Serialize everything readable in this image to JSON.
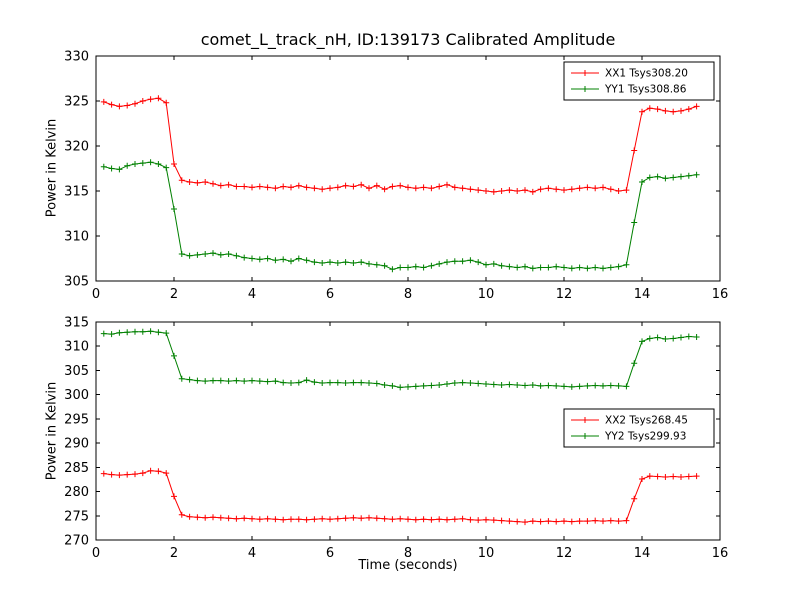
{
  "figure": {
    "title": "comet_L_track_nH, ID:139173 Calibrated Amplitude",
    "background": "#ffffff",
    "frame_color": "#000000"
  },
  "chart_data": [
    {
      "type": "line",
      "title": "",
      "xlabel": "",
      "ylabel": "Power in Kelvin",
      "xlim": [
        0,
        16
      ],
      "ylim": [
        305,
        330
      ],
      "xticks": [
        0,
        2,
        4,
        6,
        8,
        10,
        12,
        14,
        16
      ],
      "yticks": [
        305,
        310,
        315,
        320,
        325,
        330
      ],
      "grid": false,
      "legend_pos": "upper-right",
      "marker": "+",
      "x": [
        0.2,
        0.4,
        0.6,
        0.8,
        1.0,
        1.2,
        1.4,
        1.6,
        1.8,
        2.0,
        2.2,
        2.4,
        2.6,
        2.8,
        3.0,
        3.2,
        3.4,
        3.6,
        3.8,
        4.0,
        4.2,
        4.4,
        4.6,
        4.8,
        5.0,
        5.2,
        5.4,
        5.6,
        5.8,
        6.0,
        6.2,
        6.4,
        6.6,
        6.8,
        7.0,
        7.2,
        7.4,
        7.6,
        7.8,
        8.0,
        8.2,
        8.4,
        8.6,
        8.8,
        9.0,
        9.2,
        9.4,
        9.6,
        9.8,
        10.0,
        10.2,
        10.4,
        10.6,
        10.8,
        11.0,
        11.2,
        11.4,
        11.6,
        11.8,
        12.0,
        12.2,
        12.4,
        12.6,
        12.8,
        13.0,
        13.2,
        13.4,
        13.6,
        13.8,
        14.0,
        14.2,
        14.4,
        14.6,
        14.8,
        15.0,
        15.2,
        15.4
      ],
      "series": [
        {
          "name": "XX1 Tsys308.20",
          "color": "#ff0000",
          "values": [
            324.9,
            324.6,
            324.4,
            324.5,
            324.7,
            325.0,
            325.2,
            325.3,
            324.8,
            318.0,
            316.2,
            316.0,
            315.9,
            316.0,
            315.8,
            315.6,
            315.7,
            315.5,
            315.5,
            315.4,
            315.5,
            315.4,
            315.3,
            315.5,
            315.4,
            315.6,
            315.4,
            315.3,
            315.2,
            315.3,
            315.4,
            315.6,
            315.5,
            315.7,
            315.3,
            315.6,
            315.2,
            315.5,
            315.6,
            315.4,
            315.3,
            315.4,
            315.3,
            315.5,
            315.7,
            315.4,
            315.3,
            315.2,
            315.1,
            315.0,
            314.9,
            315.0,
            315.1,
            315.0,
            315.1,
            314.9,
            315.2,
            315.3,
            315.2,
            315.1,
            315.2,
            315.3,
            315.4,
            315.3,
            315.4,
            315.2,
            315.0,
            315.1,
            319.5,
            323.8,
            324.2,
            324.1,
            323.9,
            323.8,
            323.9,
            324.1,
            324.4
          ]
        },
        {
          "name": "YY1 Tsys308.86",
          "color": "#008000",
          "values": [
            317.7,
            317.5,
            317.4,
            317.8,
            318.0,
            318.1,
            318.2,
            318.0,
            317.6,
            313.0,
            308.0,
            307.8,
            307.9,
            308.0,
            308.1,
            307.9,
            308.0,
            307.8,
            307.6,
            307.5,
            307.4,
            307.5,
            307.3,
            307.4,
            307.2,
            307.5,
            307.3,
            307.1,
            307.0,
            307.1,
            307.0,
            307.1,
            307.0,
            307.1,
            306.9,
            306.8,
            306.7,
            306.3,
            306.5,
            306.5,
            306.6,
            306.5,
            306.7,
            306.9,
            307.1,
            307.2,
            307.2,
            307.3,
            307.1,
            306.8,
            306.9,
            306.7,
            306.6,
            306.5,
            306.6,
            306.4,
            306.5,
            306.5,
            306.6,
            306.5,
            306.4,
            306.5,
            306.4,
            306.5,
            306.4,
            306.5,
            306.6,
            306.8,
            311.5,
            316.0,
            316.5,
            316.6,
            316.4,
            316.5,
            316.6,
            316.7,
            316.8
          ]
        }
      ]
    },
    {
      "type": "line",
      "title": "",
      "xlabel": "Time (seconds)",
      "ylabel": "Power in Kelvin",
      "xlim": [
        0,
        16
      ],
      "ylim": [
        270,
        315
      ],
      "xticks": [
        0,
        2,
        4,
        6,
        8,
        10,
        12,
        14,
        16
      ],
      "yticks": [
        270,
        275,
        280,
        285,
        290,
        295,
        300,
        305,
        310,
        315
      ],
      "grid": false,
      "legend_pos": "middle-right",
      "marker": "+",
      "x": [
        0.2,
        0.4,
        0.6,
        0.8,
        1.0,
        1.2,
        1.4,
        1.6,
        1.8,
        2.0,
        2.2,
        2.4,
        2.6,
        2.8,
        3.0,
        3.2,
        3.4,
        3.6,
        3.8,
        4.0,
        4.2,
        4.4,
        4.6,
        4.8,
        5.0,
        5.2,
        5.4,
        5.6,
        5.8,
        6.0,
        6.2,
        6.4,
        6.6,
        6.8,
        7.0,
        7.2,
        7.4,
        7.6,
        7.8,
        8.0,
        8.2,
        8.4,
        8.6,
        8.8,
        9.0,
        9.2,
        9.4,
        9.6,
        9.8,
        10.0,
        10.2,
        10.4,
        10.6,
        10.8,
        11.0,
        11.2,
        11.4,
        11.6,
        11.8,
        12.0,
        12.2,
        12.4,
        12.6,
        12.8,
        13.0,
        13.2,
        13.4,
        13.6,
        13.8,
        14.0,
        14.2,
        14.4,
        14.6,
        14.8,
        15.0,
        15.2,
        15.4
      ],
      "series": [
        {
          "name": "XX2 Tsys268.45",
          "color": "#ff0000",
          "values": [
            283.7,
            283.5,
            283.4,
            283.5,
            283.6,
            283.8,
            284.3,
            284.2,
            283.8,
            279.0,
            275.2,
            274.8,
            274.7,
            274.6,
            274.7,
            274.6,
            274.5,
            274.4,
            274.5,
            274.4,
            274.3,
            274.4,
            274.3,
            274.2,
            274.3,
            274.3,
            274.2,
            274.3,
            274.4,
            274.3,
            274.4,
            274.5,
            274.6,
            274.5,
            274.6,
            274.5,
            274.4,
            274.3,
            274.4,
            274.3,
            274.2,
            274.3,
            274.2,
            274.3,
            274.2,
            274.3,
            274.4,
            274.2,
            274.1,
            274.2,
            274.1,
            274.0,
            273.9,
            273.8,
            273.7,
            273.9,
            273.8,
            273.9,
            273.8,
            273.9,
            273.8,
            273.9,
            273.9,
            274.0,
            273.9,
            274.0,
            273.9,
            274.0,
            278.5,
            282.6,
            283.2,
            283.1,
            283.0,
            283.1,
            283.0,
            283.1,
            283.2
          ]
        },
        {
          "name": "YY2 Tsys299.93",
          "color": "#008000",
          "values": [
            312.6,
            312.5,
            312.8,
            312.9,
            313.0,
            313.0,
            313.1,
            312.9,
            312.7,
            308.0,
            303.3,
            303.1,
            302.9,
            302.8,
            302.9,
            302.9,
            302.8,
            302.9,
            302.8,
            302.9,
            302.8,
            302.7,
            302.8,
            302.5,
            302.4,
            302.5,
            303.0,
            302.6,
            302.4,
            302.5,
            302.5,
            302.4,
            302.5,
            302.5,
            302.4,
            302.3,
            302.0,
            301.8,
            301.5,
            301.6,
            301.7,
            301.8,
            301.9,
            302.0,
            302.2,
            302.4,
            302.5,
            302.4,
            302.3,
            302.2,
            302.1,
            302.0,
            302.1,
            302.0,
            301.9,
            302.0,
            301.8,
            301.9,
            301.8,
            301.7,
            301.6,
            301.7,
            301.8,
            301.9,
            301.8,
            301.9,
            301.8,
            301.7,
            306.5,
            311.0,
            311.6,
            311.8,
            311.5,
            311.6,
            311.8,
            312.0,
            311.9
          ]
        }
      ]
    }
  ]
}
